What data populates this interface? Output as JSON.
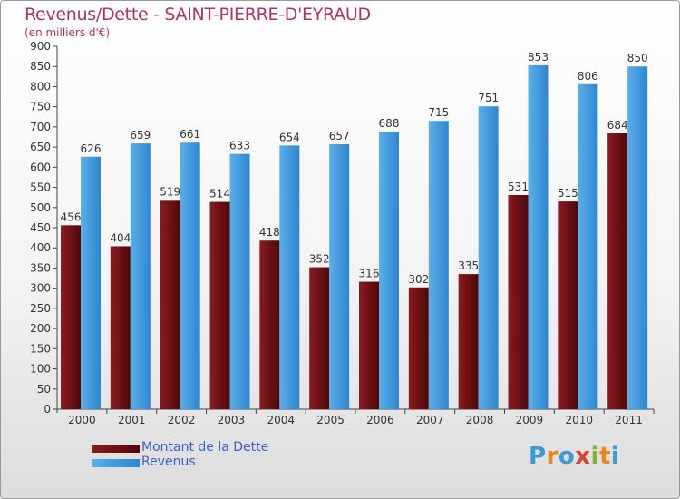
{
  "chart_data": {
    "type": "bar",
    "title": "Revenus/Dette - SAINT-PIERRE-D'EYRAUD",
    "subtitle": "(en milliers d'€)",
    "categories": [
      "2000",
      "2001",
      "2002",
      "2003",
      "2004",
      "2005",
      "2006",
      "2007",
      "2008",
      "2009",
      "2010",
      "2011"
    ],
    "series": [
      {
        "name": "Montant de la Dette",
        "color": "#6b0f12",
        "values": [
          456,
          404,
          519,
          514,
          418,
          352,
          316,
          302,
          335,
          531,
          515,
          684
        ]
      },
      {
        "name": "Revenus",
        "color": "#3f9ae0",
        "values": [
          626,
          659,
          661,
          633,
          654,
          657,
          688,
          715,
          751,
          853,
          806,
          850
        ]
      }
    ],
    "ylim": [
      0,
      900
    ],
    "ytick_step": 50,
    "grid": false,
    "legend_position": "bottom-left"
  },
  "logo": {
    "letters": [
      "P",
      "r",
      "o",
      "x",
      "i",
      "t",
      "i"
    ],
    "colors": [
      "#3a9ad9",
      "#e9871c",
      "#3a9ad9",
      "#e23c2b",
      "#7db43a",
      "#e9871c",
      "#3a9ad9"
    ]
  }
}
